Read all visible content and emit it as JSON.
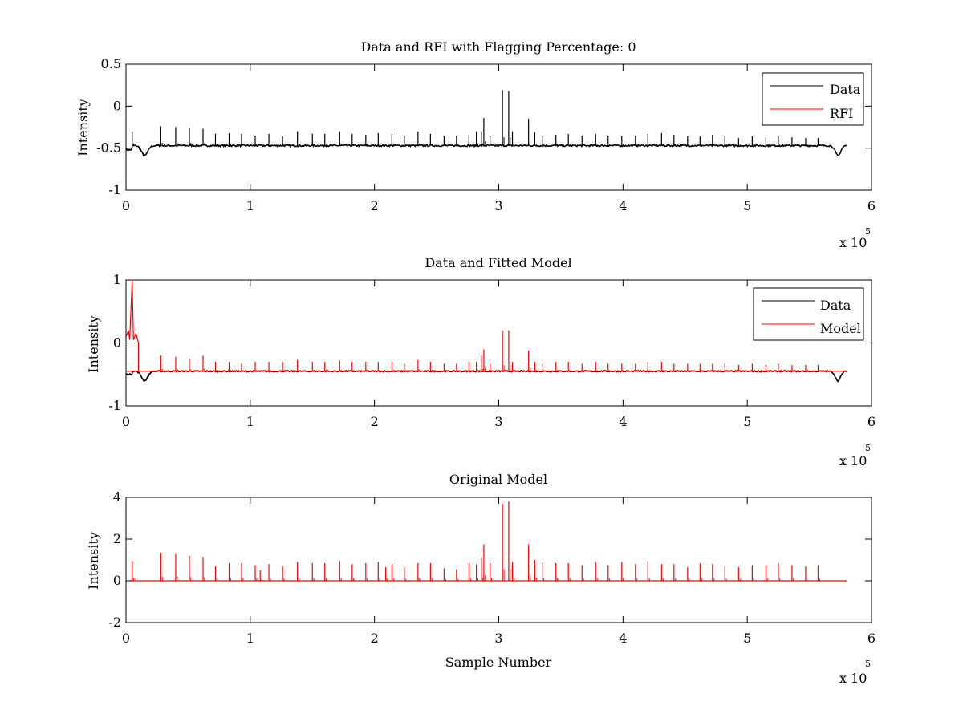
{
  "chart_data": [
    {
      "type": "line",
      "title": "Data and RFI with Flagging Percentage: 0",
      "xlabel": "",
      "ylabel": "Intensity",
      "xlim": [
        0,
        6
      ],
      "ylim": [
        -1,
        0.5
      ],
      "x_multiplier": "x 10",
      "x_multiplier_exp": "5",
      "xticks": [
        "0",
        "1",
        "2",
        "3",
        "4",
        "5",
        "6"
      ],
      "yticks": [
        "-1",
        "-0.5",
        "0",
        "0.5"
      ],
      "ytick_values": [
        -1,
        -0.5,
        0,
        0.5
      ],
      "legend": [
        {
          "label": "Data",
          "color": "#000000"
        },
        {
          "label": "RFI",
          "color": "#ff0000"
        }
      ],
      "series": [
        {
          "name": "Data",
          "color": "#000000",
          "baseline": -0.47,
          "x_range": [
            0,
            5.8
          ],
          "dip_depth": -0.12,
          "spikes": [
            [
              0.05,
              -0.3
            ],
            [
              0.28,
              -0.24
            ],
            [
              0.4,
              -0.25
            ],
            [
              0.51,
              -0.26
            ],
            [
              0.62,
              -0.27
            ],
            [
              0.72,
              -0.33
            ],
            [
              0.83,
              -0.32
            ],
            [
              0.93,
              -0.33
            ],
            [
              1.04,
              -0.35
            ],
            [
              1.15,
              -0.33
            ],
            [
              1.26,
              -0.36
            ],
            [
              1.38,
              -0.3
            ],
            [
              1.5,
              -0.33
            ],
            [
              1.6,
              -0.33
            ],
            [
              1.72,
              -0.3
            ],
            [
              1.82,
              -0.33
            ],
            [
              1.93,
              -0.34
            ],
            [
              2.03,
              -0.32
            ],
            [
              2.14,
              -0.33
            ],
            [
              2.24,
              -0.35
            ],
            [
              2.35,
              -0.3
            ],
            [
              2.45,
              -0.33
            ],
            [
              2.56,
              -0.35
            ],
            [
              2.66,
              -0.35
            ],
            [
              2.76,
              -0.34
            ],
            [
              2.82,
              -0.3
            ],
            [
              2.86,
              -0.3
            ],
            [
              2.88,
              -0.14
            ],
            [
              2.93,
              -0.35
            ],
            [
              3.03,
              0.19
            ],
            [
              3.08,
              0.18
            ],
            [
              3.11,
              -0.3
            ],
            [
              3.24,
              -0.15
            ],
            [
              3.29,
              -0.31
            ],
            [
              3.35,
              -0.36
            ],
            [
              3.46,
              -0.34
            ],
            [
              3.56,
              -0.33
            ],
            [
              3.67,
              -0.35
            ],
            [
              3.78,
              -0.33
            ],
            [
              3.88,
              -0.35
            ],
            [
              3.99,
              -0.36
            ],
            [
              4.1,
              -0.35
            ],
            [
              4.2,
              -0.33
            ],
            [
              4.31,
              -0.32
            ],
            [
              4.41,
              -0.34
            ],
            [
              4.52,
              -0.36
            ],
            [
              4.62,
              -0.36
            ],
            [
              4.72,
              -0.34
            ],
            [
              4.82,
              -0.36
            ],
            [
              4.93,
              -0.38
            ],
            [
              5.04,
              -0.36
            ],
            [
              5.15,
              -0.37
            ],
            [
              5.25,
              -0.36
            ],
            [
              5.36,
              -0.37
            ],
            [
              5.47,
              -0.38
            ],
            [
              5.57,
              -0.38
            ]
          ]
        }
      ]
    },
    {
      "type": "line",
      "title": "Data and Fitted Model",
      "xlabel": "",
      "ylabel": "Intensity",
      "xlim": [
        0,
        6
      ],
      "ylim": [
        -1,
        1
      ],
      "x_multiplier": "x 10",
      "x_multiplier_exp": "5",
      "xticks": [
        "0",
        "1",
        "2",
        "3",
        "4",
        "5",
        "6"
      ],
      "yticks": [
        "-1",
        "0",
        "1"
      ],
      "ytick_values": [
        -1,
        0,
        1
      ],
      "legend": [
        {
          "label": "Data",
          "color": "#000000"
        },
        {
          "label": "Model",
          "color": "#ff0000"
        }
      ],
      "series": [
        {
          "name": "Data",
          "color": "#000000",
          "baseline": -0.45,
          "x_range": [
            0,
            5.8
          ],
          "dip_depth": -0.15,
          "spikes": []
        },
        {
          "name": "Model",
          "color": "#ff0000",
          "baseline": -0.45,
          "x_range": [
            0,
            5.8
          ],
          "start_segment": [
            [
              0,
              0.1
            ],
            [
              0.02,
              0.2
            ],
            [
              0.03,
              0.05
            ],
            [
              0.05,
              1.0
            ],
            [
              0.06,
              0.05
            ],
            [
              0.08,
              0.15
            ],
            [
              0.1,
              0.0
            ]
          ],
          "spikes": [
            [
              0.28,
              -0.2
            ],
            [
              0.4,
              -0.22
            ],
            [
              0.51,
              -0.25
            ],
            [
              0.62,
              -0.2
            ],
            [
              0.72,
              -0.3
            ],
            [
              0.83,
              -0.3
            ],
            [
              0.93,
              -0.33
            ],
            [
              1.04,
              -0.3
            ],
            [
              1.15,
              -0.3
            ],
            [
              1.26,
              -0.3
            ],
            [
              1.38,
              -0.27
            ],
            [
              1.5,
              -0.3
            ],
            [
              1.6,
              -0.3
            ],
            [
              1.72,
              -0.28
            ],
            [
              1.82,
              -0.3
            ],
            [
              1.93,
              -0.3
            ],
            [
              2.03,
              -0.3
            ],
            [
              2.14,
              -0.3
            ],
            [
              2.24,
              -0.33
            ],
            [
              2.35,
              -0.27
            ],
            [
              2.45,
              -0.3
            ],
            [
              2.56,
              -0.33
            ],
            [
              2.66,
              -0.33
            ],
            [
              2.76,
              -0.3
            ],
            [
              2.82,
              -0.3
            ],
            [
              2.86,
              -0.2
            ],
            [
              2.88,
              -0.1
            ],
            [
              2.93,
              -0.33
            ],
            [
              3.03,
              0.2
            ],
            [
              3.08,
              0.2
            ],
            [
              3.11,
              -0.3
            ],
            [
              3.24,
              -0.12
            ],
            [
              3.29,
              -0.3
            ],
            [
              3.35,
              -0.33
            ],
            [
              3.46,
              -0.3
            ],
            [
              3.56,
              -0.3
            ],
            [
              3.67,
              -0.33
            ],
            [
              3.78,
              -0.3
            ],
            [
              3.88,
              -0.33
            ],
            [
              3.99,
              -0.33
            ],
            [
              4.1,
              -0.33
            ],
            [
              4.2,
              -0.3
            ],
            [
              4.31,
              -0.3
            ],
            [
              4.41,
              -0.33
            ],
            [
              4.52,
              -0.33
            ],
            [
              4.62,
              -0.33
            ],
            [
              4.72,
              -0.33
            ],
            [
              4.82,
              -0.33
            ],
            [
              4.93,
              -0.35
            ],
            [
              5.04,
              -0.33
            ],
            [
              5.15,
              -0.35
            ],
            [
              5.25,
              -0.33
            ],
            [
              5.36,
              -0.35
            ],
            [
              5.47,
              -0.35
            ],
            [
              5.57,
              -0.35
            ]
          ]
        }
      ]
    },
    {
      "type": "line",
      "title": "Original Model",
      "xlabel": "Sample Number",
      "ylabel": "Intensity",
      "xlim": [
        0,
        6
      ],
      "ylim": [
        -2,
        4
      ],
      "x_multiplier": "x 10",
      "x_multiplier_exp": "5",
      "xticks": [
        "0",
        "1",
        "2",
        "3",
        "4",
        "5",
        "6"
      ],
      "yticks": [
        "-2",
        "0",
        "2",
        "4"
      ],
      "ytick_values": [
        -2,
        0,
        2,
        4
      ],
      "legend": [],
      "series": [
        {
          "name": "Original Model",
          "color": "#ff0000",
          "baseline": 0,
          "x_range": [
            0.03,
            5.8
          ],
          "spikes": [
            [
              0.05,
              0.95
            ],
            [
              0.08,
              0.15
            ],
            [
              0.28,
              1.35
            ],
            [
              0.4,
              1.3
            ],
            [
              0.51,
              1.2
            ],
            [
              0.62,
              1.15
            ],
            [
              0.72,
              0.7
            ],
            [
              0.83,
              0.85
            ],
            [
              0.93,
              0.85
            ],
            [
              1.04,
              0.75
            ],
            [
              1.08,
              0.5
            ],
            [
              1.15,
              0.8
            ],
            [
              1.26,
              0.7
            ],
            [
              1.38,
              0.9
            ],
            [
              1.5,
              0.85
            ],
            [
              1.6,
              0.85
            ],
            [
              1.72,
              0.95
            ],
            [
              1.82,
              0.8
            ],
            [
              1.93,
              0.85
            ],
            [
              2.03,
              0.9
            ],
            [
              2.09,
              0.65
            ],
            [
              2.14,
              0.8
            ],
            [
              2.24,
              0.65
            ],
            [
              2.35,
              0.85
            ],
            [
              2.45,
              0.85
            ],
            [
              2.56,
              0.6
            ],
            [
              2.66,
              0.55
            ],
            [
              2.76,
              0.85
            ],
            [
              2.82,
              0.8
            ],
            [
              2.86,
              1.1
            ],
            [
              2.88,
              1.75
            ],
            [
              2.93,
              0.85
            ],
            [
              3.03,
              3.7
            ],
            [
              3.08,
              3.8
            ],
            [
              3.11,
              0.9
            ],
            [
              3.24,
              1.75
            ],
            [
              3.29,
              1.0
            ],
            [
              3.35,
              0.9
            ],
            [
              3.46,
              0.85
            ],
            [
              3.56,
              0.85
            ],
            [
              3.67,
              0.75
            ],
            [
              3.78,
              0.9
            ],
            [
              3.88,
              0.75
            ],
            [
              3.99,
              0.9
            ],
            [
              4.1,
              0.8
            ],
            [
              4.2,
              0.95
            ],
            [
              4.31,
              0.8
            ],
            [
              4.41,
              0.8
            ],
            [
              4.52,
              0.65
            ],
            [
              4.62,
              0.85
            ],
            [
              4.72,
              0.8
            ],
            [
              4.82,
              0.7
            ],
            [
              4.93,
              0.65
            ],
            [
              5.04,
              0.75
            ],
            [
              5.15,
              0.75
            ],
            [
              5.25,
              0.85
            ],
            [
              5.36,
              0.75
            ],
            [
              5.47,
              0.7
            ],
            [
              5.57,
              0.75
            ]
          ]
        }
      ]
    }
  ]
}
